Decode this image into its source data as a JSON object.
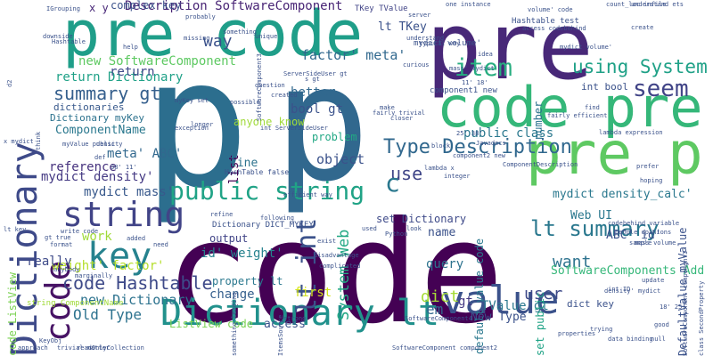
{
  "words": [
    {
      "text": "code",
      "color": "#440154",
      "orient": "h"
    },
    {
      "text": "p",
      "color": "#2c6e8e",
      "orient": "h"
    },
    {
      "text": "p",
      "color": "#31688e",
      "orient": "h"
    },
    {
      "text": "pre",
      "color": "#482878",
      "orient": "h"
    },
    {
      "text": "pre code",
      "color": "#1f9e89",
      "orient": "h"
    },
    {
      "text": "code pre",
      "color": "#35b779",
      "orient": "h"
    },
    {
      "text": "pre p",
      "color": "#5ec962",
      "orient": "h"
    },
    {
      "text": "Dictionary lt",
      "color": "#21918c",
      "orient": "h"
    },
    {
      "text": "value",
      "color": "#3b528b",
      "orient": "h"
    },
    {
      "text": "Dictionary",
      "color": "#3e4a89",
      "orient": "v"
    },
    {
      "text": "code",
      "color": "#471365",
      "orient": "v"
    },
    {
      "text": "string",
      "color": "#414487",
      "orient": "h"
    },
    {
      "text": "key",
      "color": "#26828e",
      "orient": "h"
    },
    {
      "text": "public string",
      "color": "#20a386",
      "orient": "h"
    },
    {
      "text": "lt int",
      "color": "#3b528b",
      "orient": "v"
    },
    {
      "text": "Type Description",
      "color": "#31688e",
      "orient": "h"
    },
    {
      "text": "lt summary",
      "color": "#2a788e",
      "orient": "h"
    },
    {
      "text": "using System",
      "color": "#1fa187",
      "orient": "h"
    },
    {
      "text": "item",
      "color": "#28ae80",
      "orient": "h"
    },
    {
      "text": "seem",
      "color": "#414487",
      "orient": "h"
    },
    {
      "text": "code Hashtable",
      "color": "#3e4a89",
      "orient": "h"
    },
    {
      "text": "summary gt",
      "color": "#355f8d",
      "orient": "h"
    },
    {
      "text": "new Dictionary",
      "color": "#2c728e",
      "orient": "h"
    },
    {
      "text": "return Dictionary",
      "color": "#1fa187",
      "orient": "h"
    },
    {
      "text": "Description SoftwareComponent",
      "color": "#482475",
      "orient": "h"
    },
    {
      "text": "way",
      "color": "#3b528b",
      "orient": "h"
    },
    {
      "text": "new SoftwareComponent",
      "color": "#5ec962",
      "orient": "h"
    },
    {
      "text": "factor' meta'",
      "color": "#31688e",
      "orient": "h"
    },
    {
      "text": "return",
      "color": "#3e4a89",
      "orient": "h"
    },
    {
      "text": "System Web",
      "color": "#22a884",
      "orient": "v"
    },
    {
      "text": "public class",
      "color": "#2a788e",
      "orient": "h"
    },
    {
      "text": "use",
      "color": "#404688",
      "orient": "h"
    },
    {
      "text": "Old Type",
      "color": "#2c728e",
      "orient": "h"
    },
    {
      "text": "user",
      "color": "#3e4a89",
      "orient": "h"
    },
    {
      "text": "want",
      "color": "#2c728e",
      "orient": "h"
    },
    {
      "text": "object",
      "color": "#3b528b",
      "orient": "h"
    },
    {
      "text": "ComponentName",
      "color": "#2a788e",
      "orient": "h"
    },
    {
      "text": "meta' ABC'",
      "color": "#31688e",
      "orient": "h"
    },
    {
      "text": "mydict density'",
      "color": "#443983",
      "orient": "h"
    },
    {
      "text": "mydict mass'",
      "color": "#38598c",
      "orient": "h"
    },
    {
      "text": "reference",
      "color": "#46327e",
      "orient": "h"
    },
    {
      "text": "weight' factor'",
      "color": "#b5de2b",
      "orient": "h"
    },
    {
      "text": "work",
      "color": "#a0da39",
      "orient": "h"
    },
    {
      "text": "really",
      "color": "#3e4a89",
      "orient": "h"
    },
    {
      "text": "id' weight'",
      "color": "#26828e",
      "orient": "h"
    },
    {
      "text": "change",
      "color": "#355f8d",
      "orient": "h"
    },
    {
      "text": "output",
      "color": "#414487",
      "orient": "h"
    },
    {
      "text": "property lt",
      "color": "#2a788e",
      "orient": "h"
    },
    {
      "text": "New Type",
      "color": "#3b528b",
      "orient": "h"
    },
    {
      "text": "access",
      "color": "#3b528b",
      "orient": "h"
    },
    {
      "text": "ListView code",
      "color": "#7ad151",
      "orient": "h"
    },
    {
      "text": "SoftwareComponents Add",
      "color": "#35b779",
      "orient": "h"
    },
    {
      "text": "Web UI",
      "color": "#2a788e",
      "orient": "h"
    },
    {
      "text": "name",
      "color": "#3b528b",
      "orient": "h"
    },
    {
      "text": "query",
      "color": "#2c728e",
      "orient": "h"
    },
    {
      "text": "dict",
      "color": "#a5db36",
      "orient": "h"
    },
    {
      "text": "em",
      "color": "#31688e",
      "orient": "h"
    },
    {
      "text": "gt",
      "color": "#443983",
      "orient": "h"
    },
    {
      "text": "TValue gt",
      "color": "#2a788e",
      "orient": "h"
    },
    {
      "text": "set Dictionary",
      "color": "#3e4a89",
      "orient": "h"
    },
    {
      "text": "mydict density_calc'",
      "color": "#2a788e",
      "orient": "h"
    },
    {
      "text": "lt TKey",
      "color": "#3b528b",
      "orient": "h"
    },
    {
      "text": "bool gt",
      "color": "#3b528b",
      "orient": "h"
    },
    {
      "text": "better",
      "color": "#31688e",
      "orient": "h"
    },
    {
      "text": "problem",
      "color": "#22a884",
      "orient": "h"
    },
    {
      "text": "anyone know",
      "color": "#a0da39",
      "orient": "h"
    },
    {
      "text": "list",
      "color": "#440154",
      "orient": "v"
    },
    {
      "text": "line",
      "color": "#2c728e",
      "orient": "h"
    },
    {
      "text": "c",
      "color": "#2a788e",
      "orient": "h"
    },
    {
      "text": "first",
      "color": "#d2e21b",
      "orient": "h"
    },
    {
      "text": "default_value code",
      "color": "#2a788e",
      "orient": "v"
    },
    {
      "text": "int bool",
      "color": "#3b528b",
      "orient": "h"
    },
    {
      "text": "ABC' id'",
      "color": "#3b528b",
      "orient": "h"
    },
    {
      "text": "DefaultValue myValue",
      "color": "#3b528b",
      "orient": "v"
    },
    {
      "text": "set public",
      "color": "#20a386",
      "orient": "v"
    },
    {
      "text": "dict key",
      "color": "#3b528b",
      "orient": "h"
    },
    {
      "text": "code ListView",
      "color": "#7ad151",
      "orient": "v"
    },
    {
      "text": "number",
      "color": "#2c728e",
      "orient": "v"
    },
    {
      "text": "component1 new",
      "color": "#3b528b",
      "orient": "h"
    },
    {
      "text": "TKey TValue",
      "color": "#414487",
      "orient": "h"
    },
    {
      "text": "x y",
      "color": "#482878",
      "orient": "h"
    },
    {
      "text": "Dictionary myKey",
      "color": "#2c728e",
      "orient": "h"
    },
    {
      "text": "dictionaries",
      "color": "#38598c",
      "orient": "h"
    },
    {
      "text": "mydict volume'",
      "color": "#3b528b",
      "orient": "h"
    },
    {
      "text": "Hashtable test",
      "color": "#3b528b",
      "orient": "h"
    },
    {
      "text": "Javadocs",
      "color": "#3b528b",
      "orient": "h"
    },
    {
      "text": "Python",
      "color": "#3b528b",
      "orient": "h"
    },
    {
      "text": "HashTable false",
      "color": "#3b528b",
      "orient": "h"
    },
    {
      "text": "Dictionary DICT_MYKEY",
      "color": "#3b528b",
      "orient": "h"
    },
    {
      "text": "ServerSideUser gt",
      "color": "#3b528b",
      "orient": "h"
    },
    {
      "text": "int ServerSideUser",
      "color": "#3b528b",
      "orient": "h"
    },
    {
      "text": "mass volume",
      "color": "#3b528b",
      "orient": "h"
    },
    {
      "text": "codebehind variable",
      "color": "#3b528b",
      "orient": "h"
    },
    {
      "text": "string ComponentName",
      "color": "#a0da39",
      "orient": "h"
    },
    {
      "text": "readOnlyCollection",
      "color": "#3b528b",
      "orient": "h"
    },
    {
      "text": "SoftwareComponent component2",
      "color": "#3b528b",
      "orient": "h"
    },
    {
      "text": "trivial matter",
      "color": "#3b528b",
      "orient": "h"
    },
    {
      "text": "approach",
      "color": "#3b528b",
      "orient": "h"
    },
    {
      "text": "KeyObj",
      "color": "#3b528b",
      "orient": "h"
    },
    {
      "text": "SoftwareComponent4",
      "color": "#3b528b",
      "orient": "h"
    },
    {
      "text": "properties",
      "color": "#3b528b",
      "orient": "h"
    },
    {
      "text": "data binding",
      "color": "#3b528b",
      "orient": "h"
    },
    {
      "text": "density' mydict",
      "color": "#3b528b",
      "orient": "h"
    },
    {
      "text": "int ID",
      "color": "#3b528b",
      "orient": "h"
    },
    {
      "text": "update",
      "color": "#3b528b",
      "orient": "h"
    },
    {
      "text": "sample",
      "color": "#3b528b",
      "orient": "h"
    },
    {
      "text": "people opinions",
      "color": "#3b528b",
      "orient": "h"
    },
    {
      "text": "hoping",
      "color": "#3b528b",
      "orient": "h"
    },
    {
      "text": "prefer",
      "color": "#3b528b",
      "orient": "h"
    },
    {
      "text": "lambda expression",
      "color": "#3b528b",
      "orient": "h"
    },
    {
      "text": "fairly efficient",
      "color": "#3b528b",
      "orient": "h"
    },
    {
      "text": "understand",
      "color": "#3b528b",
      "orient": "h"
    },
    {
      "text": "typical way",
      "color": "#3b528b",
      "orient": "h"
    },
    {
      "text": "component2 new",
      "color": "#3b528b",
      "orient": "h"
    },
    {
      "text": "curious",
      "color": "#3b528b",
      "orient": "h"
    },
    {
      "text": "server",
      "color": "#3b528b",
      "orient": "h"
    },
    {
      "text": "probably",
      "color": "#3b528b",
      "orient": "h"
    },
    {
      "text": "something",
      "color": "#3b528b",
      "orient": "h"
    },
    {
      "text": "unique",
      "color": "#3b528b",
      "orient": "h"
    },
    {
      "text": "missing",
      "color": "#3b528b",
      "orient": "h"
    },
    {
      "text": "help",
      "color": "#3b528b",
      "orient": "h"
    },
    {
      "text": "downside",
      "color": "#3b528b",
      "orient": "h"
    },
    {
      "text": "IGrouping",
      "color": "#3b528b",
      "orient": "h"
    },
    {
      "text": "count_loc infile",
      "color": "#3b528b",
      "orient": "h"
    },
    {
      "text": "understand ets",
      "color": "#3b528b",
      "orient": "h"
    },
    {
      "text": "one instance",
      "color": "#3b528b",
      "orient": "h"
    },
    {
      "text": "volume' code",
      "color": "#3b528b",
      "orient": "h"
    },
    {
      "text": "access codebehind",
      "color": "#3b528b",
      "orient": "h"
    },
    {
      "text": "question",
      "color": "#3b528b",
      "orient": "h"
    },
    {
      "text": "exception",
      "color": "#3b528b",
      "orient": "h"
    },
    {
      "text": "longer",
      "color": "#3b528b",
      "orient": "h"
    },
    {
      "text": "myKey set",
      "color": "#3b528b",
      "orient": "h"
    },
    {
      "text": "closer",
      "color": "#3b528b",
      "orient": "h"
    },
    {
      "text": "make",
      "color": "#3b528b",
      "orient": "h"
    },
    {
      "text": "efficient way",
      "color": "#3b528b",
      "orient": "h"
    },
    {
      "text": "write code",
      "color": "#3b528b",
      "orient": "h"
    },
    {
      "text": "gt true",
      "color": "#3b528b",
      "orient": "h"
    },
    {
      "text": "format",
      "color": "#3b528b",
      "orient": "h"
    },
    {
      "text": "anybody",
      "color": "#3b528b",
      "orient": "h"
    },
    {
      "text": "marginally",
      "color": "#3b528b",
      "orient": "h"
    },
    {
      "text": "added",
      "color": "#3b528b",
      "orient": "h"
    },
    {
      "text": "need",
      "color": "#3b528b",
      "orient": "h"
    },
    {
      "text": "following",
      "color": "#3b528b",
      "orient": "h"
    },
    {
      "text": "disadvantage",
      "color": "#3b528b",
      "orient": "h"
    },
    {
      "text": "complicated",
      "color": "#3b528b",
      "orient": "h"
    },
    {
      "text": "exist",
      "color": "#3b528b",
      "orient": "h"
    },
    {
      "text": "used",
      "color": "#3b528b",
      "orient": "h"
    },
    {
      "text": "look",
      "color": "#3b528b",
      "orient": "h"
    },
    {
      "text": "refine",
      "color": "#3b528b",
      "orient": "h"
    },
    {
      "text": "myValue public",
      "color": "#3b528b",
      "orient": "h"
    },
    {
      "text": "density",
      "color": "#3b528b",
      "orient": "h"
    },
    {
      "text": "block",
      "color": "#3b528b",
      "orient": "h"
    },
    {
      "text": "25' 38'",
      "color": "#3b528b",
      "orient": "h"
    },
    {
      "text": "38' 11'",
      "color": "#3b528b",
      "orient": "h"
    },
    {
      "text": "18' 25'",
      "color": "#3b528b",
      "orient": "h"
    },
    {
      "text": "11' 18'",
      "color": "#3b528b",
      "orient": "h"
    },
    {
      "text": "mass' mydict",
      "color": "#3b528b",
      "orient": "h"
    },
    {
      "text": "idea",
      "color": "#3b528b",
      "orient": "h"
    },
    {
      "text": "find",
      "color": "#3b528b",
      "orient": "h"
    },
    {
      "text": "mydict volume'",
      "color": "#3b528b",
      "orient": "h"
    },
    {
      "text": "create",
      "color": "#3b528b",
      "orient": "h"
    },
    {
      "text": "strong",
      "color": "#3b528b",
      "orient": "h"
    },
    {
      "text": "trying",
      "color": "#3b528b",
      "orient": "h"
    },
    {
      "text": "good",
      "color": "#3b528b",
      "orient": "h"
    },
    {
      "text": "null",
      "color": "#3b528b",
      "orient": "h"
    },
    {
      "text": "think",
      "color": "#3b528b",
      "orient": "h"
    },
    {
      "text": "lt key",
      "color": "#3b528b",
      "orient": "h"
    },
    {
      "text": "SoftwareComponent component1",
      "color": "#3b528b",
      "orient": "v"
    },
    {
      "text": "class SecondProperty",
      "color": "#3b528b",
      "orient": "h"
    },
    {
      "text": "ItemsSource",
      "color": "#3b528b",
      "orient": "v"
    },
    {
      "text": "something leading",
      "color": "#3b528b",
      "orient": "v"
    },
    {
      "text": "lambda x",
      "color": "#3b528b",
      "orient": "h"
    },
    {
      "text": "def",
      "color": "#3b528b",
      "orient": "h"
    },
    {
      "text": "integer",
      "color": "#3b528b",
      "orient": "h"
    },
    {
      "text": "ComponentDescription",
      "color": "#3b528b",
      "orient": "h"
    },
    {
      "text": "x mydict",
      "color": "#3b528b",
      "orient": "h"
    },
    {
      "text": "d2",
      "color": "#3b528b",
      "orient": "h"
    },
    {
      "text": "Hashtable",
      "color": "#3b528b",
      "orient": "h"
    },
    {
      "text": "SoftwareComponent3",
      "color": "#3b528b",
      "orient": "v"
    },
    {
      "text": "s gt",
      "color": "#3b528b",
      "orient": "h"
    },
    {
      "text": "created",
      "color": "#3b528b",
      "orient": "h"
    },
    {
      "text": "possible",
      "color": "#3b528b",
      "orient": "h"
    },
    {
      "text": "fairly trivial",
      "color": "#3b528b",
      "orient": "h"
    },
    {
      "text": "complex key",
      "color": "#3b528b",
      "orient": "h"
    },
    {
      "text": "hear people",
      "color": "#3b528b",
      "orient": "h"
    },
    {
      "text": "x",
      "color": "#3b528b",
      "orient": "h"
    }
  ]
}
